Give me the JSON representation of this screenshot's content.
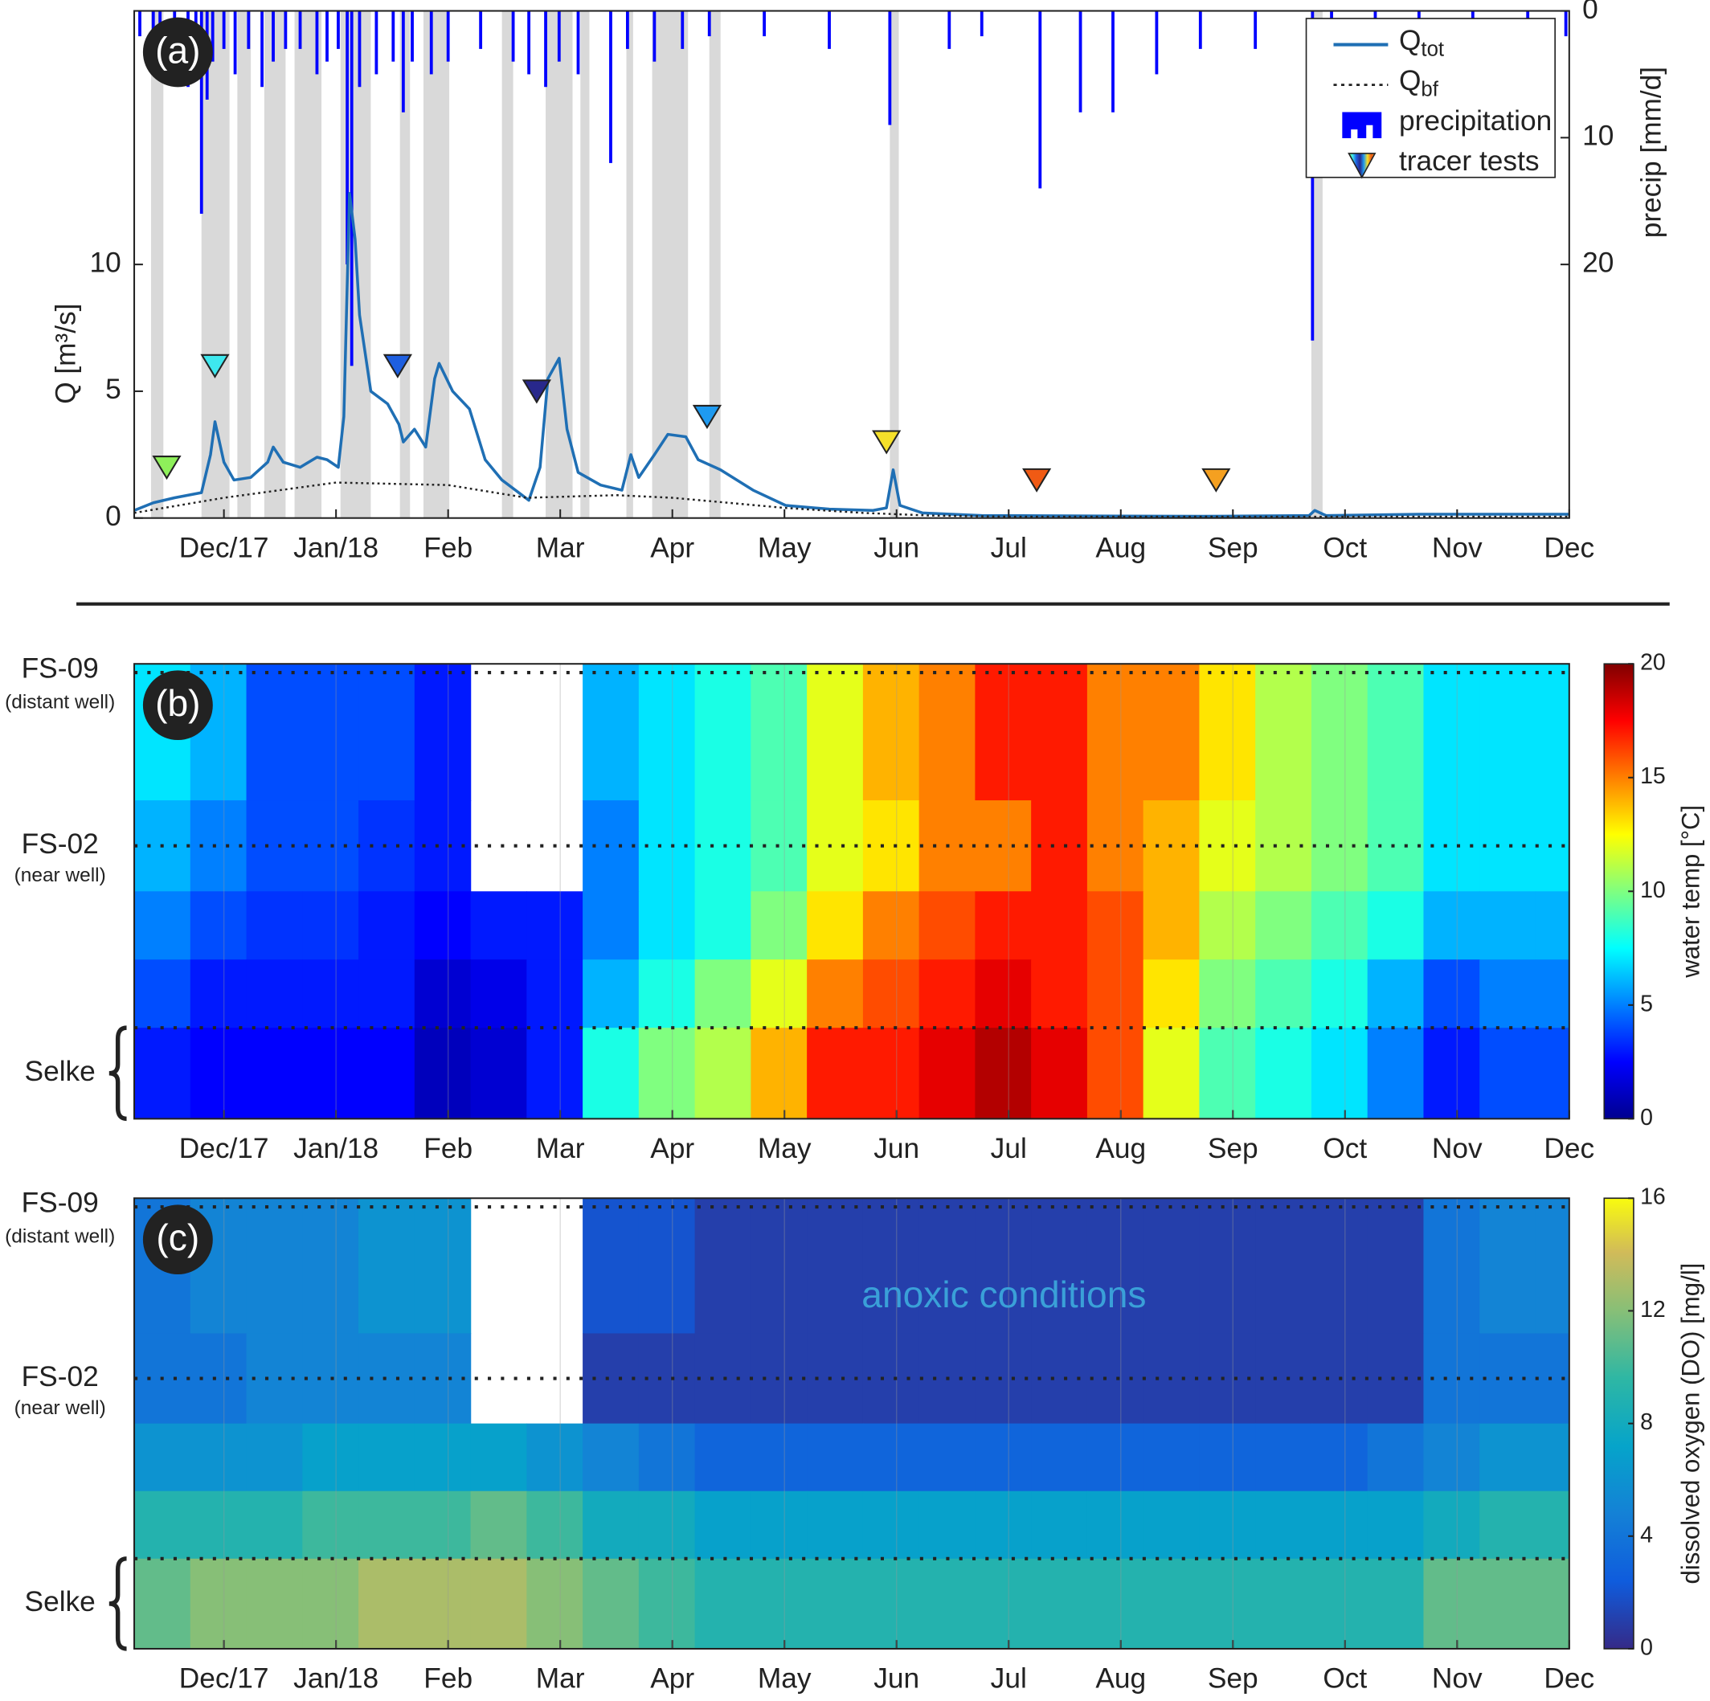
{
  "chart_data": [
    {
      "type": "line",
      "panel": "(a)",
      "ylabel": "Q [m³/s]",
      "y2label": "precip [mm/d]",
      "legend": "upper right",
      "xlim": [
        11.2,
        24
      ],
      "ylim": [
        0,
        20
      ],
      "y2lim": [
        0,
        40
      ],
      "yticks": [
        0,
        5,
        10
      ],
      "y2ticks": [
        0,
        10,
        20
      ],
      "xticks": [
        {
          "value": 12,
          "label": "Dec/17"
        },
        {
          "value": 13,
          "label": "Jan/18"
        },
        {
          "value": 14,
          "label": "Feb"
        },
        {
          "value": 15,
          "label": "Mar"
        },
        {
          "value": 16,
          "label": "Apr"
        },
        {
          "value": 17,
          "label": "May"
        },
        {
          "value": 18,
          "label": "Jun"
        },
        {
          "value": 19,
          "label": "Jul"
        },
        {
          "value": 20,
          "label": "Aug"
        },
        {
          "value": 21,
          "label": "Sep"
        },
        {
          "value": 22,
          "label": "Oct"
        },
        {
          "value": 23,
          "label": "Nov"
        },
        {
          "value": 24,
          "label": "Dec"
        }
      ],
      "shaded_periods": [
        [
          11.35,
          11.46
        ],
        [
          11.8,
          12.05
        ],
        [
          12.12,
          12.24
        ],
        [
          12.36,
          12.55
        ],
        [
          12.63,
          12.87
        ],
        [
          13.04,
          13.31
        ],
        [
          13.57,
          13.66
        ],
        [
          13.78,
          14.01
        ],
        [
          14.48,
          14.58
        ],
        [
          14.87,
          15.11
        ],
        [
          15.18,
          15.26
        ],
        [
          15.59,
          15.65
        ],
        [
          15.82,
          16.14
        ],
        [
          16.33,
          16.43
        ],
        [
          17.94,
          18.02
        ],
        [
          21.7,
          21.8
        ]
      ],
      "shade_color": "#d9d9d9",
      "series": [
        {
          "name": "Q",
          "name_sub": "tot",
          "color": "#1f6fb4",
          "style": "solid",
          "x": [
            11.2,
            11.37,
            11.56,
            11.8,
            11.88,
            11.92,
            12.0,
            12.09,
            12.24,
            12.39,
            12.44,
            12.53,
            12.68,
            12.83,
            12.92,
            13.02,
            13.07,
            13.12,
            13.17,
            13.21,
            13.31,
            13.46,
            13.56,
            13.6,
            13.7,
            13.8,
            13.88,
            13.92,
            14.04,
            14.19,
            14.33,
            14.48,
            14.63,
            14.72,
            14.82,
            14.89,
            14.99,
            15.06,
            15.16,
            15.36,
            15.55,
            15.63,
            15.7,
            15.84,
            15.96,
            16.12,
            16.23,
            16.43,
            16.72,
            17.01,
            17.4,
            17.79,
            17.91,
            17.97,
            18.03,
            18.23,
            18.76,
            19.74,
            20.71,
            21.68,
            21.73,
            21.83,
            22.66,
            24.0
          ],
          "values": [
            0.3,
            0.6,
            0.8,
            1.0,
            2.5,
            3.8,
            2.2,
            1.5,
            1.6,
            2.2,
            2.8,
            2.2,
            2.0,
            2.4,
            2.3,
            2.0,
            4,
            12.8,
            11,
            8,
            5,
            4.5,
            3.7,
            3.0,
            3.5,
            2.8,
            5.5,
            6.1,
            5,
            4.3,
            2.3,
            1.5,
            1.0,
            0.7,
            2,
            5.5,
            6.3,
            3.5,
            1.8,
            1.3,
            1.1,
            2.5,
            1.6,
            2.5,
            3.3,
            3.2,
            2.3,
            1.9,
            1.1,
            0.5,
            0.35,
            0.3,
            0.4,
            1.9,
            0.5,
            0.2,
            0.1,
            0.08,
            0.07,
            0.1,
            0.3,
            0.1,
            0.15,
            0.15
          ]
        },
        {
          "name": "Q",
          "name_sub": "bf",
          "color": "#222222",
          "style": "dotted",
          "x": [
            11.2,
            12,
            13,
            14,
            14.7,
            15.5,
            16,
            16.5,
            17,
            17.7,
            18.3,
            19,
            24
          ],
          "values": [
            0.2,
            0.8,
            1.4,
            1.3,
            0.8,
            0.9,
            0.8,
            0.6,
            0.4,
            0.2,
            0.1,
            0.05,
            0.05
          ]
        },
        {
          "name": "precipitation",
          "type": "bar",
          "axis": "y2",
          "color": "#0000ff",
          "x": [
            11.25,
            11.37,
            11.43,
            11.56,
            11.68,
            11.75,
            11.8,
            11.85,
            11.9,
            12.0,
            12.1,
            12.22,
            12.34,
            12.44,
            12.55,
            12.68,
            12.83,
            12.92,
            13.02,
            13.1,
            13.14,
            13.21,
            13.36,
            13.51,
            13.6,
            13.68,
            13.85,
            14.0,
            14.29,
            14.58,
            14.72,
            14.87,
            14.99,
            15.16,
            15.45,
            15.6,
            15.84,
            16.09,
            16.33,
            16.82,
            17.4,
            17.94,
            18.47,
            18.76,
            19.28,
            19.64,
            19.93,
            20.32,
            20.71,
            21.2,
            21.71,
            21.88,
            22.27,
            22.66,
            23.14,
            23.63,
            23.97
          ],
          "values": [
            2,
            3,
            5,
            4,
            6,
            3,
            16,
            7,
            4,
            3,
            5,
            3,
            6,
            4,
            3,
            3,
            5,
            4,
            3,
            20,
            28,
            6,
            5,
            4,
            8,
            4,
            5,
            4,
            3,
            4,
            5,
            6,
            4,
            5,
            12,
            3,
            4,
            3,
            2,
            2,
            3,
            9,
            3,
            2,
            14,
            8,
            8,
            5,
            3,
            3,
            26,
            4,
            3,
            2,
            2,
            3,
            2
          ]
        },
        {
          "name": "tracer tests",
          "type": "marker",
          "x": [
            11.49,
            11.92,
            13.55,
            14.79,
            16.31,
            17.91,
            19.25,
            20.85
          ],
          "values": [
            2,
            6,
            6,
            5,
            4,
            3,
            1.5,
            1.5
          ],
          "colors": [
            "#8ef05a",
            "#3ee8ee",
            "#1e5fe0",
            "#28288c",
            "#1e9af0",
            "#f5e02a",
            "#f05a14",
            "#f5a020"
          ]
        }
      ]
    },
    {
      "type": "heatmap",
      "panel": "(b)",
      "colormap": "jet",
      "clim": [
        0,
        20
      ],
      "cticks": [
        0,
        5,
        10,
        15,
        20
      ],
      "clabel": "water temp [°C]",
      "row_labels": [
        {
          "name": "FS-09",
          "note": "(distant well)"
        },
        {
          "name": "FS-02",
          "note": "(near well)"
        },
        {
          "name": "Selke"
        }
      ],
      "xlim": [
        11.2,
        24
      ],
      "xticks": [
        {
          "value": 12,
          "label": "Dec/17"
        },
        {
          "value": 13,
          "label": "Jan/18"
        },
        {
          "value": 14,
          "label": "Feb"
        },
        {
          "value": 15,
          "label": "Mar"
        },
        {
          "value": 16,
          "label": "Apr"
        },
        {
          "value": 17,
          "label": "May"
        },
        {
          "value": 18,
          "label": "Jun"
        },
        {
          "value": 19,
          "label": "Jul"
        },
        {
          "value": 20,
          "label": "Aug"
        },
        {
          "value": 21,
          "label": "Sep"
        },
        {
          "value": 22,
          "label": "Oct"
        },
        {
          "value": 23,
          "label": "Nov"
        },
        {
          "value": 24,
          "label": "Dec"
        }
      ],
      "x": [
        11.2,
        11.7,
        12.2,
        12.7,
        13.2,
        13.7,
        14.2,
        14.7,
        15.2,
        15.7,
        16.2,
        16.7,
        17.2,
        17.7,
        18.2,
        18.7,
        19.2,
        19.7,
        20.2,
        20.7,
        21.2,
        21.7,
        22.2,
        22.7,
        23.2,
        23.7
      ],
      "values": [
        [
          7,
          6,
          4,
          4,
          4,
          3,
          null,
          null,
          6,
          7,
          8,
          9,
          12,
          14,
          15,
          17,
          17,
          15,
          15,
          13,
          11,
          10,
          9,
          7,
          7,
          7
        ],
        [
          6,
          5,
          4,
          4,
          3.5,
          3,
          null,
          null,
          5,
          7,
          8,
          9,
          12,
          13,
          15,
          15,
          17,
          15,
          14,
          12,
          11,
          10,
          9,
          7,
          7,
          7
        ],
        [
          5,
          4,
          3.5,
          3.5,
          3,
          2.5,
          3,
          3,
          5,
          7,
          8,
          10,
          13,
          15,
          16,
          17,
          17,
          16,
          14,
          11,
          10,
          9,
          8,
          6,
          6,
          6
        ],
        [
          4,
          3,
          3,
          3,
          3,
          1.5,
          2,
          3,
          6,
          8,
          10,
          12,
          15,
          16,
          17,
          18,
          17,
          16,
          13,
          10,
          9,
          8,
          6,
          4,
          5,
          5
        ],
        [
          3,
          2.5,
          2.5,
          2.5,
          2.5,
          1,
          1.5,
          3,
          8,
          10,
          11,
          14,
          17,
          17,
          18,
          19,
          18,
          16,
          12,
          9,
          8,
          7,
          5,
          3,
          4,
          4
        ]
      ]
    },
    {
      "type": "heatmap",
      "panel": "(c)",
      "colormap": "parula",
      "clim": [
        0,
        16
      ],
      "cticks": [
        0,
        4,
        8,
        12,
        16
      ],
      "clabel": "dissolved oxygen (DO) [mg/l]",
      "annotation": "anoxic conditions",
      "row_labels": [
        {
          "name": "FS-09",
          "note": "(distant well)"
        },
        {
          "name": "FS-02",
          "note": "(near well)"
        },
        {
          "name": "Selke"
        }
      ],
      "xlim": [
        11.2,
        24
      ],
      "xticks": [
        {
          "value": 12,
          "label": "Dec/17"
        },
        {
          "value": 13,
          "label": "Jan/18"
        },
        {
          "value": 14,
          "label": "Feb"
        },
        {
          "value": 15,
          "label": "Mar"
        },
        {
          "value": 16,
          "label": "Apr"
        },
        {
          "value": 17,
          "label": "May"
        },
        {
          "value": 18,
          "label": "Jun"
        },
        {
          "value": 19,
          "label": "Jul"
        },
        {
          "value": 20,
          "label": "Aug"
        },
        {
          "value": 21,
          "label": "Sep"
        },
        {
          "value": 22,
          "label": "Oct"
        },
        {
          "value": 23,
          "label": "Nov"
        },
        {
          "value": 24,
          "label": "Dec"
        }
      ],
      "x": [
        11.2,
        11.7,
        12.2,
        12.7,
        13.2,
        13.7,
        14.2,
        14.7,
        15.2,
        15.7,
        16.2,
        16.7,
        17.2,
        17.7,
        18.2,
        18.7,
        19.2,
        19.7,
        20.2,
        20.7,
        21.2,
        21.7,
        22.2,
        22.7,
        23.2,
        23.7
      ],
      "values": [
        [
          4,
          5,
          5,
          5,
          6,
          6,
          null,
          null,
          2,
          2,
          1,
          1,
          1,
          1,
          1,
          1,
          1,
          1,
          1,
          1,
          1,
          1,
          1,
          4,
          5,
          5
        ],
        [
          4,
          4,
          5,
          5,
          5,
          5,
          null,
          null,
          1,
          1,
          1,
          1,
          1,
          1,
          1,
          1,
          1,
          1,
          1,
          1,
          1,
          1,
          1,
          4,
          4,
          4
        ],
        [
          6,
          6,
          6,
          7,
          7,
          7,
          7,
          6,
          5,
          4,
          3,
          3,
          3,
          3,
          3,
          3,
          3,
          3,
          3,
          3,
          3,
          3,
          4,
          5,
          6,
          6
        ],
        [
          9,
          9,
          9,
          10,
          10,
          10,
          11,
          10,
          8,
          8,
          7,
          7,
          7,
          7,
          7,
          7,
          7,
          7,
          7,
          7,
          7,
          7,
          7,
          8,
          9,
          9
        ],
        [
          11,
          12,
          12,
          12,
          13,
          13,
          13,
          12,
          11,
          10,
          9,
          9,
          9,
          9,
          9,
          9,
          9,
          9,
          9,
          9,
          9,
          9,
          9,
          11,
          11,
          11
        ]
      ]
    }
  ]
}
